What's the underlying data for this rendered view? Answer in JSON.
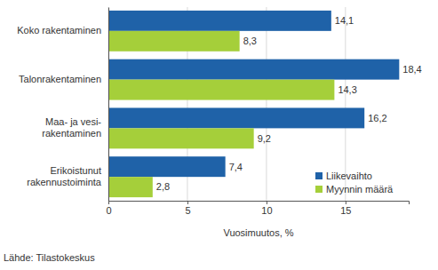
{
  "chart_data": {
    "type": "bar",
    "orientation": "horizontal",
    "categories": [
      "Koko rakentaminen",
      "Talonrakentaminen",
      "Maa- ja vesi-\nrakentaminen",
      "Erikoistunut\nrakennustoiminta"
    ],
    "series": [
      {
        "name": "Liikevaihto",
        "color": "#1f62a8",
        "values": [
          14.1,
          18.4,
          16.2,
          7.4
        ],
        "value_labels": [
          "14,1",
          "18,4",
          "16,2",
          "7,4"
        ]
      },
      {
        "name": "Myynnin määrä",
        "color": "#a5cf3a",
        "values": [
          8.3,
          14.3,
          9.2,
          2.8
        ],
        "value_labels": [
          "8,3",
          "14,3",
          "9,2",
          "2,8"
        ]
      }
    ],
    "x_label": "Vuosimuutos, %",
    "source": "Lähde: Tilastokeskus",
    "xlim": [
      0,
      19
    ],
    "xticks": [
      0,
      5,
      10,
      15
    ],
    "grid": true,
    "legend": "lower right",
    "data_labels": true
  }
}
